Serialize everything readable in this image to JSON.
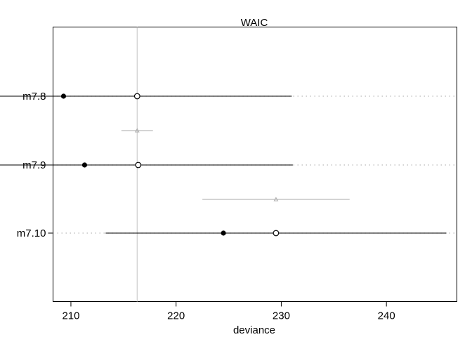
{
  "chart_data": {
    "type": "scatter",
    "title": "WAIC",
    "xlabel": "deviance",
    "ylabel": "",
    "xlim": [
      208.3,
      246.7
    ],
    "x_ticks": [
      210,
      220,
      230,
      240
    ],
    "x_tick_labels": [
      "210",
      "220",
      "230",
      "240"
    ],
    "reference_line_x": 216.3,
    "models": [
      {
        "label": "m7.8",
        "in_sample_deviance": 209.3,
        "waic": 216.3,
        "waic_interval": [
          201.6,
          231.0
        ]
      },
      {
        "label": "m7.9",
        "in_sample_deviance": 211.3,
        "waic": 216.4,
        "waic_interval": [
          201.7,
          231.1
        ]
      },
      {
        "label": "m7.10",
        "in_sample_deviance": 224.5,
        "waic": 229.5,
        "waic_interval": [
          213.3,
          245.7
        ]
      }
    ],
    "differences": [
      {
        "value": 216.3,
        "interval": [
          214.8,
          217.8
        ]
      },
      {
        "value": 229.5,
        "interval": [
          222.5,
          236.5
        ]
      }
    ],
    "colors": {
      "axis": "#000000",
      "series": "#000000",
      "reference_line": "#cccccc",
      "difference": "#aaaaaa",
      "guide_dots": "#bbbbbb"
    }
  }
}
